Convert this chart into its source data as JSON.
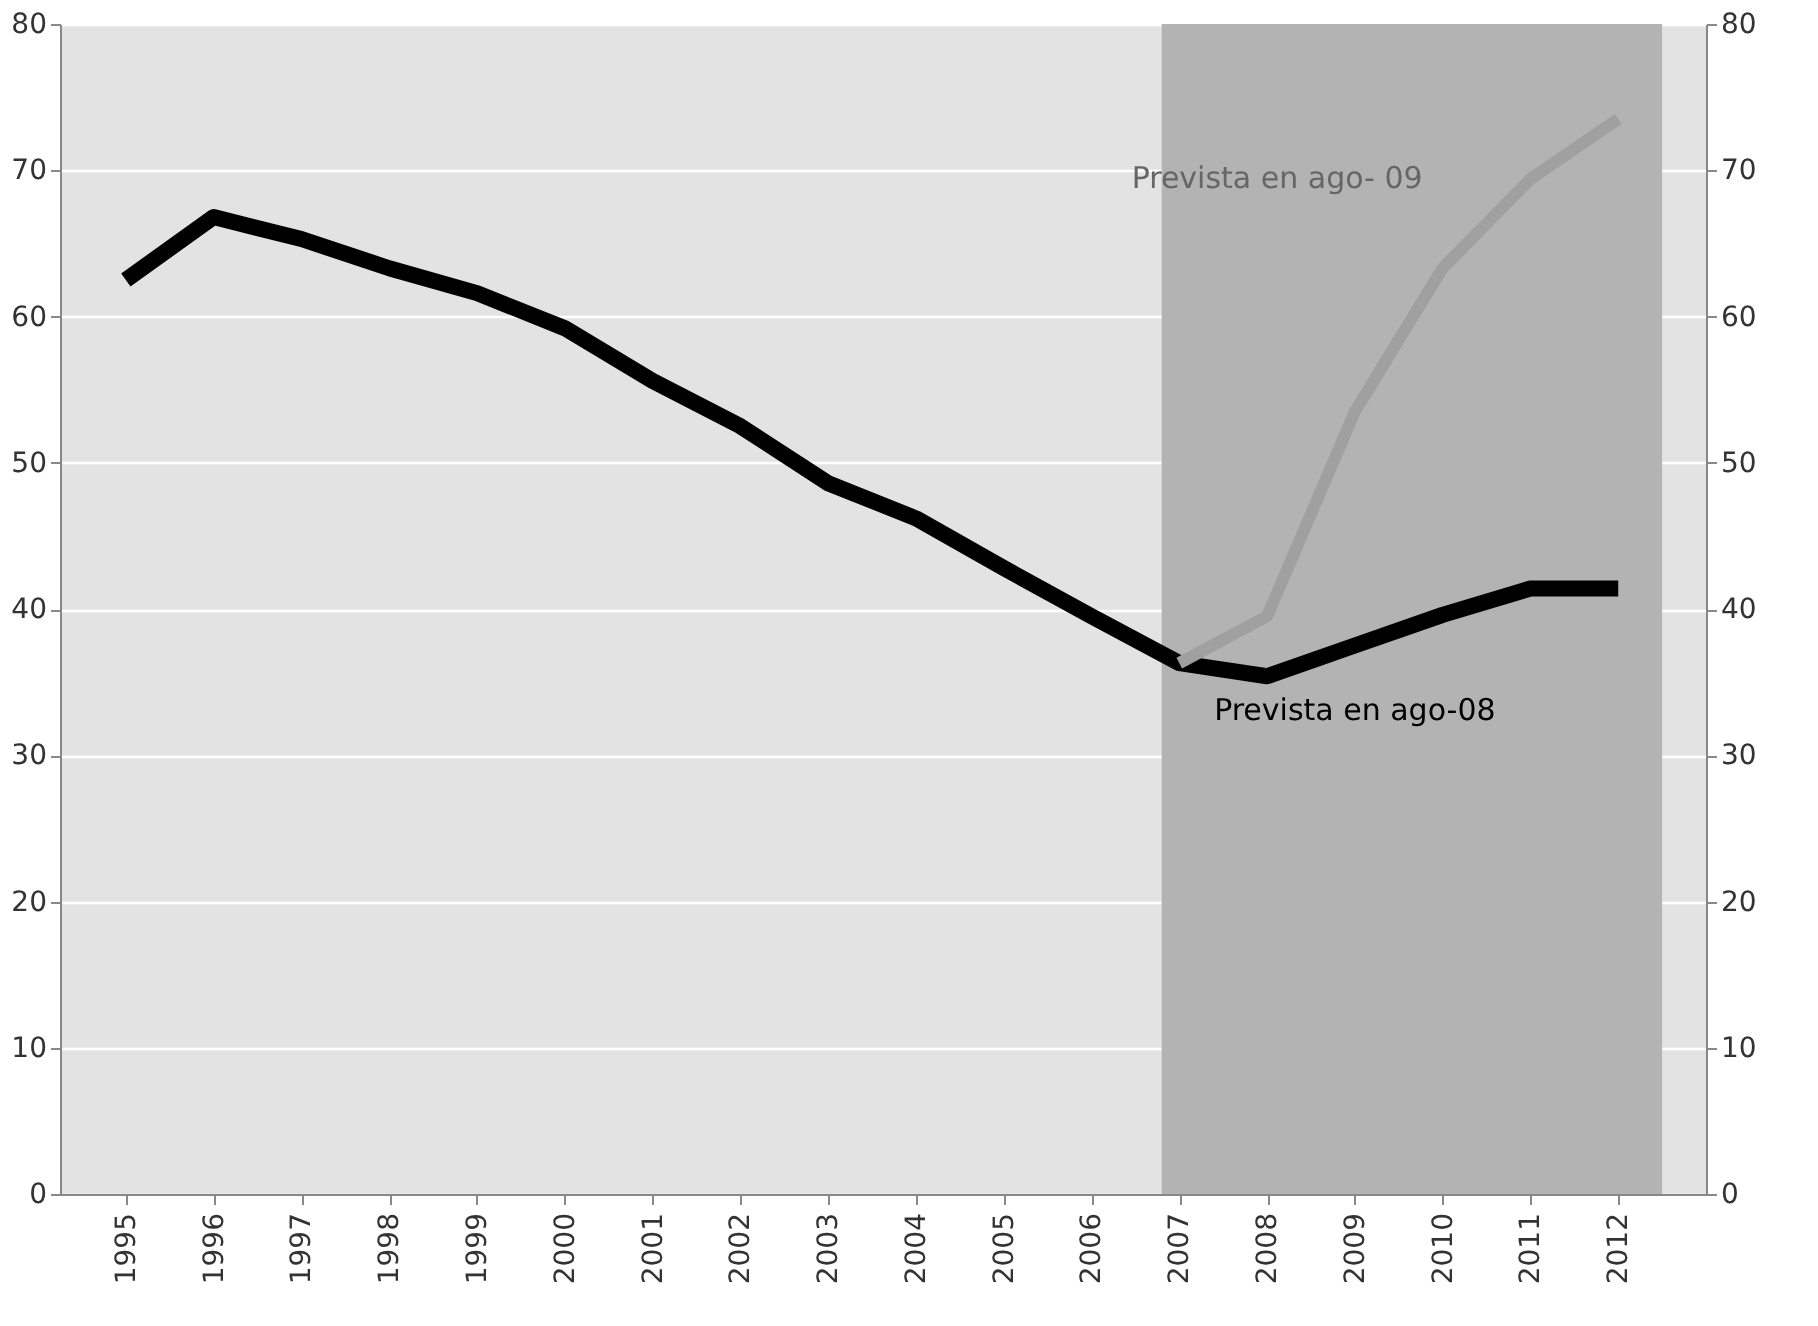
{
  "chart_data": {
    "type": "line",
    "x": [
      1995,
      1996,
      1997,
      1998,
      1999,
      2000,
      2001,
      2002,
      2003,
      2004,
      2005,
      2006,
      2007,
      2008,
      2009,
      2010,
      2011,
      2012
    ],
    "series": [
      {
        "name": "Prevista en ago-08",
        "color": "#000000",
        "values": [
          62.5,
          66.8,
          65.3,
          63.3,
          61.6,
          59.2,
          55.6,
          52.5,
          48.6,
          46.2,
          42.8,
          39.5,
          36.3,
          35.4,
          37.5,
          39.6,
          41.4,
          41.4
        ]
      },
      {
        "name": "Prevista en ago- 09",
        "color": "#a0a0a0",
        "x": [
          2007,
          2008,
          2009,
          2010,
          2011,
          2012
        ],
        "values": [
          36.3,
          39.5,
          53.5,
          63.3,
          69.4,
          73.5
        ]
      }
    ],
    "xlim": [
      1994.25,
      2013
    ],
    "xticks": [
      1995,
      1996,
      1997,
      1998,
      1999,
      2000,
      2001,
      2002,
      2003,
      2004,
      2005,
      2006,
      2007,
      2008,
      2009,
      2010,
      2011,
      2012
    ],
    "ylim": [
      0,
      80
    ],
    "yticks": [
      0,
      10,
      20,
      30,
      40,
      50,
      60,
      70,
      80
    ],
    "y2lim": [
      0,
      80
    ],
    "y2ticks": [
      0,
      10,
      20,
      30,
      40,
      50,
      60,
      70,
      80
    ],
    "bands": [
      {
        "axis": "x",
        "from": 2006.8,
        "to": 2012.5,
        "color": "#b3b3b3"
      }
    ],
    "grid": "y",
    "legend": false,
    "marker": "none",
    "line_style": "solid"
  }
}
